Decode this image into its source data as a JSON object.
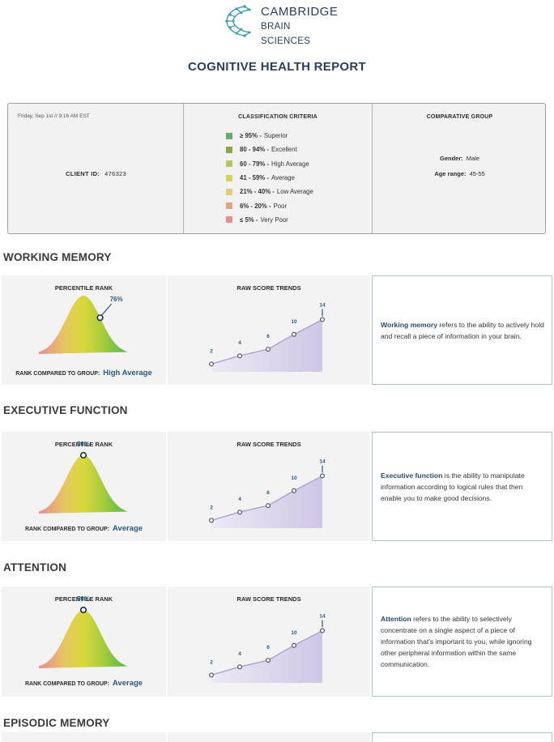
{
  "brand": {
    "line1": "CAMBRIDGE",
    "line2": "BRAIN SCIENCES"
  },
  "report_title": "COGNITIVE HEALTH REPORT",
  "info": {
    "date": "Friday, Sep 1st // 9:16 AM EST",
    "client_id_label": "CLIENT ID:",
    "client_id": "476323",
    "criteria_title": "CLASSIFICATION CRITERIA",
    "criteria": [
      {
        "range": "≥ 95% -",
        "label": "Superior",
        "color": "#6aaa6e"
      },
      {
        "range": "80 - 94% -",
        "label": "Excellent",
        "color": "#88a84a"
      },
      {
        "range": "60 - 79% -",
        "label": "High Average",
        "color": "#b4c864"
      },
      {
        "range": "41 - 59% -",
        "label": "Average",
        "color": "#d8d25a"
      },
      {
        "range": "21% - 40% -",
        "label": "Low Average",
        "color": "#e6c878"
      },
      {
        "range": "6% - 20% -",
        "label": "Poor",
        "color": "#e2a284"
      },
      {
        "range": "≤ 5% -",
        "label": "Very Poor",
        "color": "#e58c94"
      }
    ],
    "group_title": "COMPARATIVE GROUP",
    "gender_label": "Gender:",
    "gender": "Male",
    "age_label": "Age range:",
    "age": "45-55"
  },
  "colors": {
    "accent": "#2d3e5a",
    "rank_value": "#2d5a7a",
    "trend_line": "#aba3cc",
    "trend_fill": "#cfc6e6",
    "desc_border": "#a9c4d8"
  },
  "sections": [
    {
      "title": "WORKING MEMORY",
      "percentile_title": "PERCENTILE RANK",
      "percentile": 76,
      "percentile_label": "76%",
      "rank_label": "RANK COMPARED TO GROUP:",
      "rank_value": "High Average",
      "trend_title": "RAW SCORE TRENDS",
      "trend": [
        2,
        4,
        6,
        10,
        14
      ],
      "trend_labels": [
        "2",
        "4",
        "6",
        "10",
        "14"
      ],
      "desc_bold": "Working memory",
      "desc_rest": " refers to the ability to actively hold and recall a piece of information in your brain."
    },
    {
      "title": "EXECUTIVE FUNCTION",
      "percentile_title": "PERCENTILE RANK",
      "percentile": 50,
      "percentile_label": "50%",
      "rank_label": "RANK COMPARED TO GROUP:",
      "rank_value": "Average",
      "trend_title": "RAW SCORE TRENDS",
      "trend": [
        2,
        4,
        6,
        10,
        14
      ],
      "trend_labels": [
        "2",
        "4",
        "6",
        "10",
        "14"
      ],
      "desc_bold": "Executive function",
      "desc_rest": "  is the ability to manipulate information according to logical rules that then enable you to make good decisions."
    },
    {
      "title": "ATTENTION",
      "percentile_title": "PERCENTILE RANK",
      "percentile": 50,
      "percentile_label": "50%",
      "rank_label": "RANK COMPARED TO GROUP:",
      "rank_value": "Average",
      "trend_title": "RAW SCORE TRENDS",
      "trend": [
        2,
        4,
        6,
        10,
        14
      ],
      "trend_labels": [
        "2",
        "4",
        "6",
        "10",
        "14"
      ],
      "desc_bold": "Attention",
      "desc_rest": " refers to the ability to selectively concentrate on a single aspect of a piece of information that's important to you, while ignoring other peripheral information within the same communication."
    },
    {
      "title": "EPISODIC MEMORY"
    }
  ]
}
